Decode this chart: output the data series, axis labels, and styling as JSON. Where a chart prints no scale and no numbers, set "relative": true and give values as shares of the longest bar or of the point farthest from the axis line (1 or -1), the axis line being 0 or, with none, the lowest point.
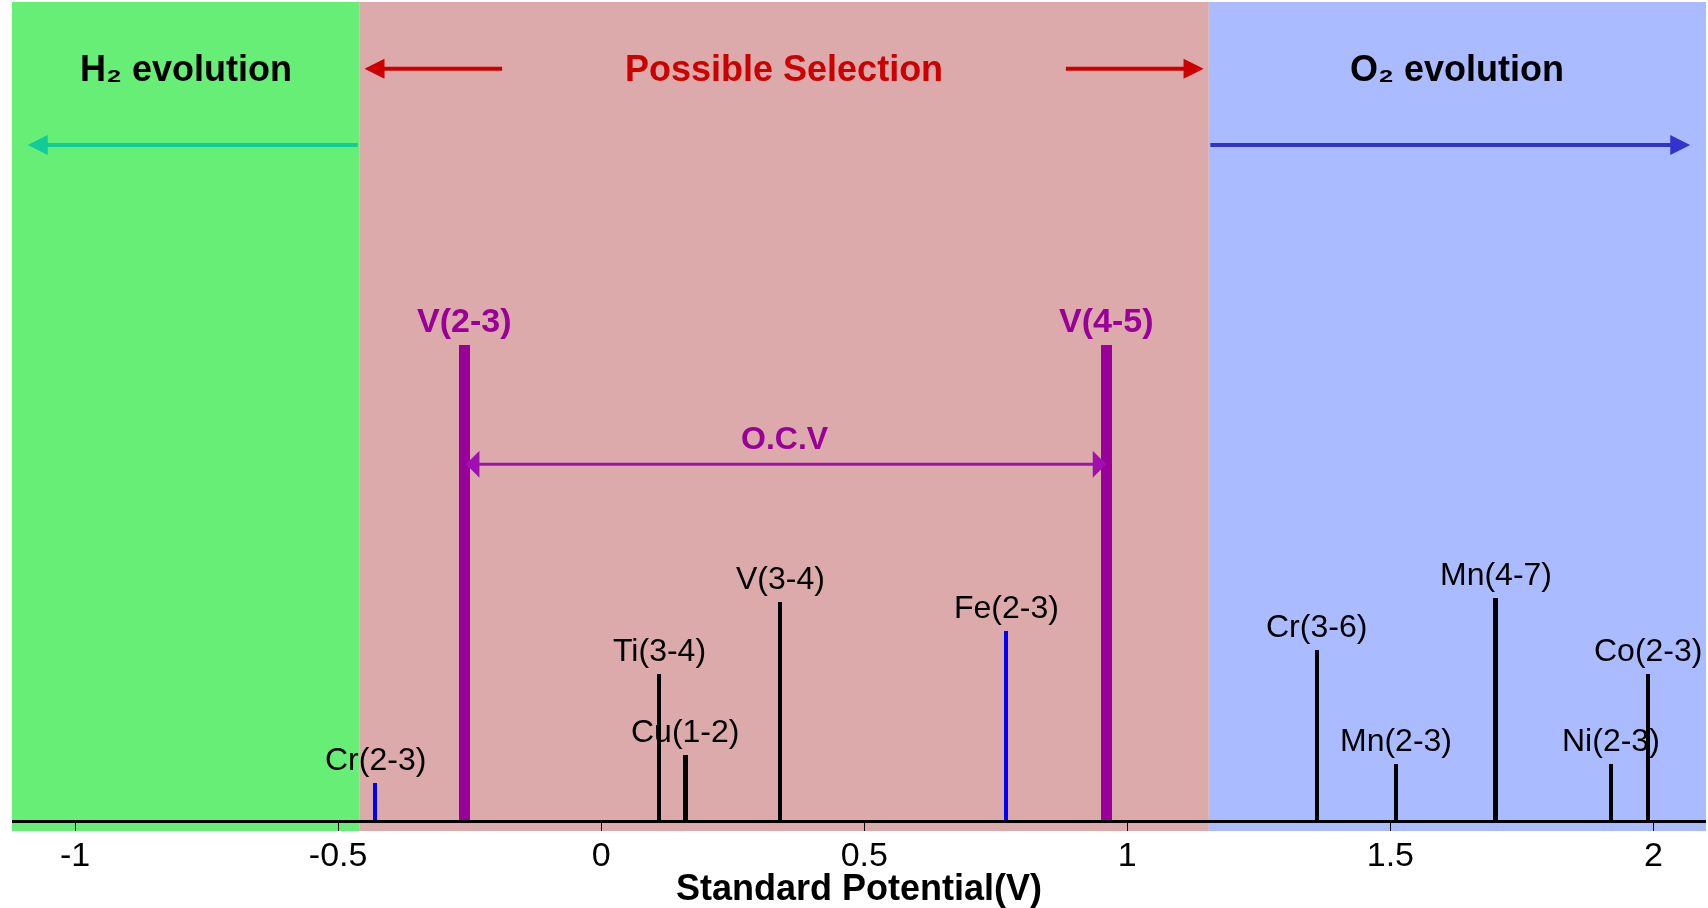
{
  "chart_data": {
    "type": "bar",
    "relative": true,
    "xlabel": "Standard Potential(V)",
    "x": [
      -0.43,
      -0.26,
      0.11,
      0.16,
      0.34,
      0.77,
      0.96,
      1.36,
      1.51,
      1.7,
      1.92,
      1.99
    ],
    "values": [
      0.08,
      1,
      0.31,
      0.14,
      0.46,
      0.4,
      1,
      0.36,
      0.12,
      0.47,
      0.12,
      0.31
    ],
    "colors": [
      "#0000ff",
      "#990099",
      "#000000",
      "#000000",
      "#000000",
      "#0000ff",
      "#990099",
      "#000000",
      "#000000",
      "#000000",
      "#000000",
      "#000000"
    ],
    "xlim": [
      -1.12,
      2.1
    ],
    "xticks": [
      {
        "value": -1,
        "label": "-1"
      },
      {
        "value": -0.5,
        "label": "-0.5"
      },
      {
        "value": 0,
        "label": "0"
      },
      {
        "value": 0.5,
        "label": "0.5"
      },
      {
        "value": 1,
        "label": "1"
      },
      {
        "value": 1.5,
        "label": "1.5"
      },
      {
        "value": 2,
        "label": "2"
      }
    ],
    "tick_labels": "x",
    "grid": false,
    "bands": [
      {
        "axis": "x",
        "from": -1.12,
        "to": -0.46,
        "label": "H₂ evolution",
        "color": "#66ee77"
      },
      {
        "axis": "x",
        "from": -0.46,
        "to": 1.155,
        "label": "Possible Selection",
        "color": "#dcaaaa"
      },
      {
        "axis": "x",
        "from": 1.155,
        "to": 2.1,
        "label": "O₂ evolution",
        "color": "#aabbff"
      }
    ],
    "annotations": [
      {
        "text": "Cr(2-3)",
        "x": -0.43,
        "y": 0.08
      },
      {
        "text": "V(2-3)",
        "x": -0.26,
        "y": 1
      },
      {
        "text": "Ti(3-4)",
        "x": 0.11,
        "y": 0.31
      },
      {
        "text": "Cu(1-2)",
        "x": 0.16,
        "y": 0.14
      },
      {
        "text": "V(3-4)",
        "x": 0.34,
        "y": 0.46
      },
      {
        "text": "Fe(2-3)",
        "x": 0.77,
        "y": 0.4
      },
      {
        "text": "V(4-5)",
        "x": 0.96,
        "y": 1
      },
      {
        "text": "Cr(3-6)",
        "x": 1.36,
        "y": 0.36
      },
      {
        "text": "Mn(2-3)",
        "x": 1.51,
        "y": 0.12
      },
      {
        "text": "Mn(4-7)",
        "x": 1.7,
        "y": 0.47
      },
      {
        "text": "Ni(2-3)",
        "x": 1.92,
        "y": 0.12
      },
      {
        "text": "Co(2-3)",
        "x": 1.99,
        "y": 0.31
      },
      "O.C.V"
    ]
  }
}
